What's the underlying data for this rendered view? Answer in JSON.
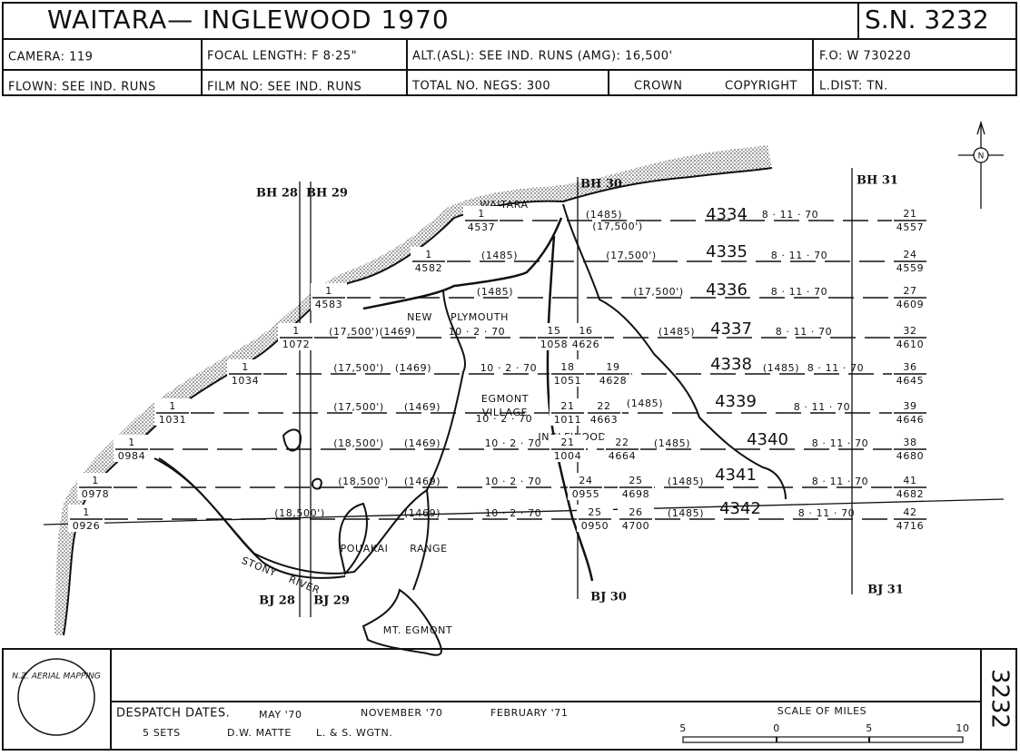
{
  "header": {
    "title": "WAITARA— INGLEWOOD  1970",
    "sheet": "S.N. 3232",
    "camera": "CAMERA:  119",
    "focal": "FOCAL LENGTH: F 8·25\"",
    "alt": "ALT.(ASL): SEE  IND. RUNS  (AMG):  16,500'",
    "fo": "F.O: W 730220",
    "flown": "FLOWN: SEE  IND. RUNS",
    "film": "FILM NO: SEE  IND. RUNS",
    "negs": "TOTAL NO. NEGS:  300",
    "crown": "CROWN",
    "copyright": "COPYRIGHT",
    "ldist": "L.DIST:  TN."
  },
  "map": {
    "north": "N",
    "grid": [
      "BH 28",
      "BH 29",
      "BH 30",
      "BH 31",
      "BJ 28",
      "BJ 29",
      "BJ 30",
      "BJ 31"
    ],
    "places": [
      "WAITARA",
      "NEW",
      "PLYMOUTH",
      "EGMONT",
      "VILLAGE",
      "INGLEWOOD",
      "POUAKAI",
      "RANGE",
      "STONY",
      "RIVER",
      "MT.  EGMONT"
    ],
    "runs": [
      {
        "labels": [
          {
            "top": "1",
            "bottom": "4537"
          },
          "(1485)",
          "(17,500')",
          "4334",
          "8 · 11 · 70",
          {
            "top": "21",
            "bottom": "4557"
          }
        ]
      },
      {
        "labels": [
          {
            "top": "1",
            "bottom": "4582"
          },
          "(1485)",
          "(17,500')",
          "4335",
          "8 · 11 · 70",
          {
            "top": "24",
            "bottom": "4559"
          }
        ]
      },
      {
        "labels": [
          {
            "top": "1",
            "bottom": "4583"
          },
          "(1485)",
          "(17,500')",
          "4336",
          "8 · 11 · 70",
          {
            "top": "27",
            "bottom": "4609"
          }
        ]
      },
      {
        "labels": [
          {
            "top": "1",
            "bottom": "1072"
          },
          "(17,500')(1469)",
          "10 · 2 · 70",
          {
            "top": "15",
            "bottom": "1058"
          },
          {
            "top": "16",
            "bottom": "4626"
          },
          "(1485)",
          "4337",
          "8 · 11 · 70",
          {
            "top": "32",
            "bottom": "4610"
          }
        ]
      },
      {
        "labels": [
          {
            "top": "1",
            "bottom": "1034"
          },
          "(17,500')",
          "(1469)",
          "10 · 2 · 70",
          {
            "top": "18",
            "bottom": "1051"
          },
          {
            "top": "19",
            "bottom": "4628"
          },
          "4338",
          "(1485)",
          "8 · 11 · 70",
          {
            "top": "36",
            "bottom": "4645"
          }
        ]
      },
      {
        "labels": [
          {
            "top": "1",
            "bottom": "1031"
          },
          "(17,500')",
          "(1469)",
          "10 · 2 · 70",
          {
            "top": "21",
            "bottom": "1011"
          },
          {
            "top": "22",
            "bottom": "4663"
          },
          "(1485)",
          "4339",
          "8 · 11 · 70",
          {
            "top": "39",
            "bottom": "4646"
          }
        ]
      },
      {
        "labels": [
          {
            "top": "1",
            "bottom": "0984"
          },
          "(18,500')",
          "(1469)",
          "10 · 2 · 70",
          {
            "top": "21",
            "bottom": "1004"
          },
          {
            "top": "22",
            "bottom": "4664"
          },
          "(1485)",
          "4340",
          "8 · 11 · 70",
          {
            "top": "38",
            "bottom": "4680"
          }
        ]
      },
      {
        "labels": [
          {
            "top": "1",
            "bottom": "0978"
          },
          "(18,500')",
          "(1469)",
          "10 · 2 · 70",
          {
            "top": "24",
            "bottom": "0955"
          },
          {
            "top": "25",
            "bottom": "4698"
          },
          "(1485)",
          "4341",
          "8 · 11 · 70",
          {
            "top": "41",
            "bottom": "4682"
          }
        ]
      },
      {
        "labels": [
          {
            "top": "1",
            "bottom": "0926"
          },
          "(18,500')",
          "(1469)",
          "10 · 2 · 70",
          {
            "top": "25",
            "bottom": "0950"
          },
          {
            "top": "26",
            "bottom": "4700"
          },
          "(1485)",
          "4342",
          "8 · 11 · 70",
          {
            "top": "42",
            "bottom": "4716"
          }
        ]
      }
    ]
  },
  "footer": {
    "logo": "N.Z. AERIAL MAPPING",
    "despatch": "DESPATCH DATES.",
    "dates": [
      "MAY '70",
      "NOVEMBER '70",
      "FEBRUARY '71"
    ],
    "sets": "5   SETS",
    "matte": "D.W.  MATTE",
    "ls": "L. & S.  WGTN.",
    "scale_title": "SCALE  OF  MILES",
    "scale": [
      "5",
      "0",
      "5",
      "10"
    ],
    "side": "3232"
  }
}
